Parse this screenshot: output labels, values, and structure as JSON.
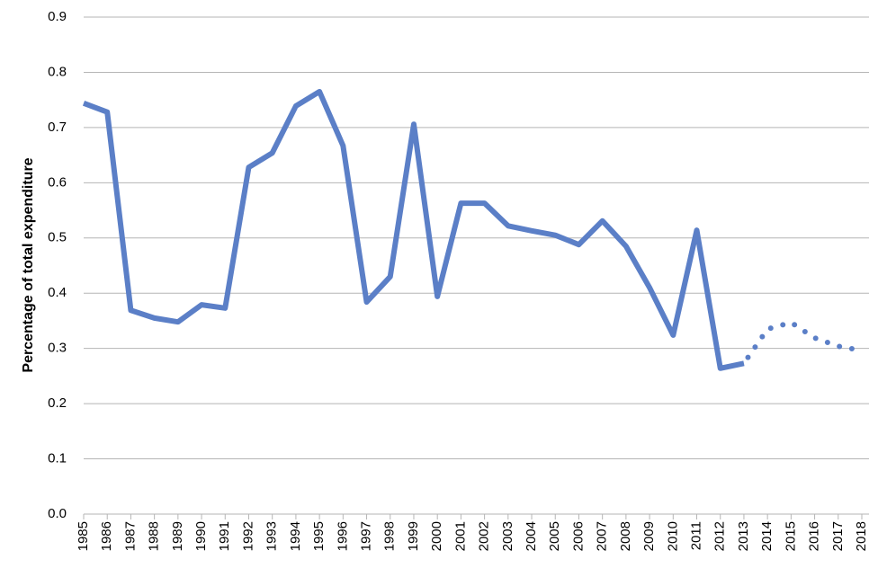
{
  "chart_data": {
    "type": "line",
    "y_label": "Percentage of total expenditure",
    "categories": [
      "1985",
      "1986",
      "1987",
      "1988",
      "1989",
      "1990",
      "1991",
      "1992",
      "1993",
      "1994",
      "1995",
      "1996",
      "1997",
      "1998",
      "1999",
      "2000",
      "2001",
      "2002",
      "2003",
      "2004",
      "2005",
      "2006",
      "2007",
      "2008",
      "2009",
      "2010",
      "2011",
      "2012",
      "2013",
      "2014",
      "2015",
      "2016",
      "2017",
      "2018"
    ],
    "series": [
      {
        "color": "#5b7fc7",
        "style": "solid",
        "values": [
          0.744,
          0.728,
          0.369,
          0.355,
          0.348,
          0.379,
          0.373,
          0.628,
          0.654,
          0.739,
          0.765,
          0.667,
          0.384,
          0.43,
          0.706,
          0.394,
          0.563,
          0.563,
          0.522,
          0.513,
          0.505,
          0.488,
          0.531,
          0.485,
          0.41,
          0.324,
          0.514,
          0.264,
          0.273,
          null,
          null,
          null,
          null,
          null
        ]
      },
      {
        "color": "#5b7fc7",
        "style": "dotted",
        "values": [
          null,
          null,
          null,
          null,
          null,
          null,
          null,
          null,
          null,
          null,
          null,
          null,
          null,
          null,
          null,
          null,
          null,
          null,
          null,
          null,
          null,
          null,
          null,
          null,
          null,
          null,
          null,
          null,
          0.273,
          0.335,
          0.347,
          0.319,
          0.304,
          0.296
        ]
      }
    ],
    "ylim": [
      0,
      0.9
    ],
    "yticks": [
      {
        "value": 0,
        "label": "0.0"
      },
      0.1,
      0.2,
      0.3,
      0.4,
      0.5,
      0.6,
      0.7,
      0.8,
      0.9
    ],
    "grid": true
  }
}
